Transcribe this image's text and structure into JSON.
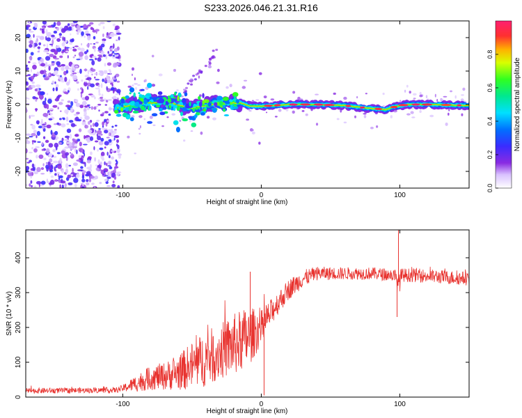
{
  "figure": {
    "title": "S233.2026.046.21.31.R16"
  },
  "chart_data": [
    {
      "type": "heatmap",
      "name": "spectrogram",
      "xlabel": "Height of straight line (km)",
      "ylabel": "Frequency (Hz)",
      "xlim": [
        -170,
        150
      ],
      "ylim": [
        -25,
        25
      ],
      "xticks": [
        -100,
        0,
        100
      ],
      "yticks": [
        -20,
        -10,
        0,
        10,
        20
      ],
      "colorbar": {
        "label": "Normalized spectral amplitude",
        "range": [
          0,
          1
        ],
        "ticks": [
          "0.0",
          "0.2",
          "0.4",
          "0.6",
          "0.8"
        ],
        "tick_values": [
          0,
          0.2,
          0.4,
          0.6,
          0.8
        ]
      },
      "signal_ridge": {
        "description_points_x": [
          -105,
          -90,
          -70,
          -50,
          -30,
          -15,
          -8,
          0,
          20,
          40,
          60,
          75,
          80,
          90,
          95,
          105,
          120,
          150
        ],
        "description_points_y": [
          -1,
          0,
          1,
          -1,
          0.5,
          0.5,
          -0.5,
          -0.5,
          0,
          0,
          -0.3,
          -1,
          -1.2,
          -1.5,
          -0.8,
          0,
          0,
          -0.3
        ]
      }
    },
    {
      "type": "line",
      "name": "snr",
      "xlabel": "Height of straight line (km)",
      "ylabel": "SNR (10 * v/v)",
      "xlim": [
        -170,
        150
      ],
      "ylim": [
        0,
        480
      ],
      "xticks": [
        -100,
        0,
        100
      ],
      "yticks": [
        0,
        100,
        200,
        300,
        400
      ],
      "color": "#e8332f",
      "envelope": {
        "x": [
          -170,
          -105,
          -100,
          -90,
          -80,
          -70,
          -60,
          -50,
          -40,
          -30,
          -20,
          -10,
          0,
          10,
          20,
          30,
          40,
          60,
          80,
          95,
          99,
          102,
          110,
          130,
          150
        ],
        "mean": [
          18,
          20,
          25,
          40,
          55,
          60,
          70,
          90,
          110,
          130,
          150,
          170,
          200,
          260,
          310,
          340,
          355,
          355,
          355,
          350,
          330,
          350,
          350,
          345,
          340
        ],
        "spread": [
          8,
          8,
          10,
          25,
          35,
          40,
          50,
          70,
          80,
          80,
          90,
          90,
          50,
          35,
          30,
          25,
          20,
          18,
          18,
          18,
          40,
          20,
          20,
          20,
          20
        ]
      },
      "features": [
        {
          "x": 99,
          "y": 480,
          "kind": "spike-up"
        },
        {
          "x": 98,
          "y": 230,
          "kind": "spike-down"
        },
        {
          "x": 2,
          "y": 5,
          "kind": "spike-down"
        },
        {
          "x": -8,
          "y": 360,
          "kind": "spike-up"
        }
      ]
    }
  ]
}
